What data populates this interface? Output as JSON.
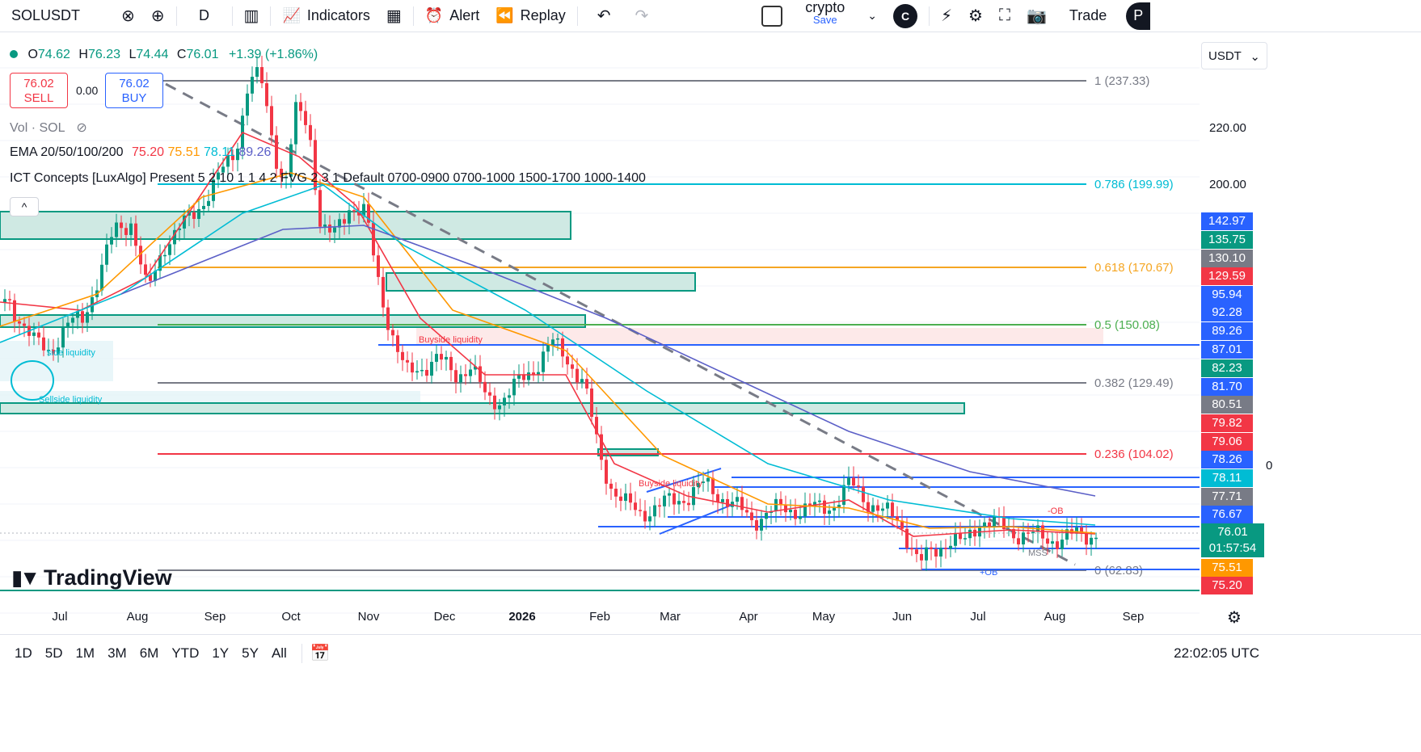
{
  "toolbar": {
    "symbol": "SOLUSDT",
    "interval": "D",
    "indicators": "Indicators",
    "alert": "Alert",
    "replay": "Replay",
    "layout_name": "crypto",
    "layout_save": "Save",
    "user_initial": "C",
    "trade": "Trade",
    "trailing": "P"
  },
  "legend": {
    "o_label": "O",
    "o": "74.62",
    "h_label": "H",
    "h": "76.23",
    "l_label": "L",
    "l": "74.44",
    "c_label": "C",
    "c": "76.01",
    "change": "+1.39 (+1.86%)",
    "sell_price": "76.02",
    "sell_label": "SELL",
    "spread": "0.00",
    "buy_price": "76.02",
    "buy_label": "BUY",
    "vol": "Vol · SOL",
    "ema_name": "EMA 20/50/100/200",
    "ema_values": [
      "75.20",
      "75.51",
      "78.11",
      "89.26"
    ],
    "ict": "ICT Concepts [LuxAlgo] Present 5 2 10 1 1 4 2 FVG 2 3 1 Default 0700-0900 0700-1000 1500-1700 1000-1400",
    "collapse": "^"
  },
  "chart_labels": {
    "buyside_liquidity_1": "Buyside liquidity",
    "buyside_liquidity_2": "Buyside liquidity",
    "side_liquidity": "side liquidity",
    "sellside_liquidity": "Sellside liquidity",
    "ob": "-OB",
    "ob_plus": "+OB",
    "mss": "MSS"
  },
  "fib_levels": [
    {
      "label": "1 (237.33)",
      "color": "#787b86"
    },
    {
      "label": "0.786 (199.99)",
      "color": "#00bcd4"
    },
    {
      "label": "0.618 (170.67)",
      "color": "#f5a623"
    },
    {
      "label": "0.5 (150.08)",
      "color": "#4caf50"
    },
    {
      "label": "0.382 (129.49)",
      "color": "#787b86"
    },
    {
      "label": "0.236 (104.02)",
      "color": "#f23645"
    },
    {
      "label": "0 (62.83)",
      "color": "#787b86"
    }
  ],
  "price_scale": {
    "currency": "USDT",
    "ticks": [
      "220.00",
      "200.00"
    ],
    "labels": [
      {
        "text": "142.97",
        "bg": "#2962ff"
      },
      {
        "text": "135.75",
        "bg": "#089981"
      },
      {
        "text": "130.10",
        "bg": "#787b86"
      },
      {
        "text": "129.59",
        "bg": "#f23645"
      },
      {
        "text": "95.94",
        "bg": "#2962ff"
      },
      {
        "text": "92.28",
        "bg": "#2962ff"
      },
      {
        "text": "89.26",
        "bg": "#2962ff"
      },
      {
        "text": "87.01",
        "bg": "#2962ff"
      },
      {
        "text": "82.23",
        "bg": "#089981"
      },
      {
        "text": "81.70",
        "bg": "#2962ff"
      },
      {
        "text": "80.51",
        "bg": "#787b86"
      },
      {
        "text": "79.82",
        "bg": "#f23645"
      },
      {
        "text": "79.06",
        "bg": "#f23645"
      },
      {
        "text": "78.26",
        "bg": "#2962ff"
      },
      {
        "text": "78.11",
        "bg": "#00bcd4"
      },
      {
        "text": "77.71",
        "bg": "#787b86"
      },
      {
        "text": "76.67",
        "bg": "#2962ff"
      }
    ],
    "last_price": "76.01",
    "countdown": "01:57:54",
    "below": [
      {
        "text": "75.51",
        "bg": "#ff9800"
      },
      {
        "text": "75.20",
        "bg": "#f23645"
      }
    ],
    "cut_off": "0"
  },
  "time_axis": [
    "Jul",
    "Aug",
    "Sep",
    "Oct",
    "Nov",
    "Dec",
    "2026",
    "Feb",
    "Mar",
    "Apr",
    "May",
    "Jun",
    "Jul",
    "Aug",
    "Sep"
  ],
  "branding": "TradingView",
  "bottom": {
    "ranges": [
      "1D",
      "5D",
      "1M",
      "3M",
      "6M",
      "YTD",
      "1Y",
      "5Y",
      "All"
    ],
    "clock": "22:02:05 UTC"
  },
  "colors": {
    "up": "#089981",
    "down": "#f23645",
    "ema20": "#f23645",
    "ema50": "#ff9800",
    "ema100": "#00bcd4",
    "ema200": "#5b5fc7",
    "ob_fill": "#cfe9e3",
    "ob_stroke": "#089981"
  }
}
